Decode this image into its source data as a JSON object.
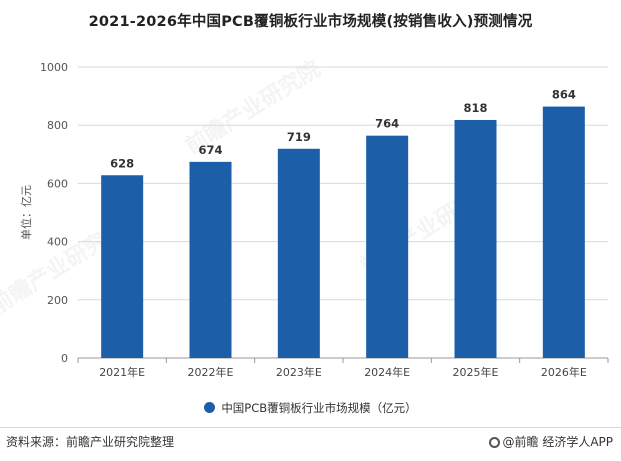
{
  "title": "2021-2026年中国PCB覆铜板行业市场规模(按销售收入)预测情况",
  "source": "资料来源：前瞻产业研究院整理",
  "brand": "@前瞻 经济学人APP",
  "watermark": "前瞻产业研究院",
  "colors": {
    "bar": "#1c5ea8",
    "grid": "#d9d9d9",
    "axis": "#999999"
  },
  "chart_data": {
    "type": "bar",
    "categories": [
      "2021年E",
      "2022年E",
      "2023年E",
      "2024年E",
      "2025年E",
      "2026年E"
    ],
    "series": [
      {
        "name": "中国PCB覆铜板行业市场规模（亿元）",
        "values": [
          628,
          674,
          719,
          764,
          818,
          864
        ]
      }
    ],
    "ylabel": "单位：亿元",
    "ylim": [
      0,
      1000
    ],
    "yticks": [
      0,
      200,
      400,
      600,
      800,
      1000
    ],
    "grid": true,
    "legend": "bottom-center",
    "data_labels": true
  }
}
